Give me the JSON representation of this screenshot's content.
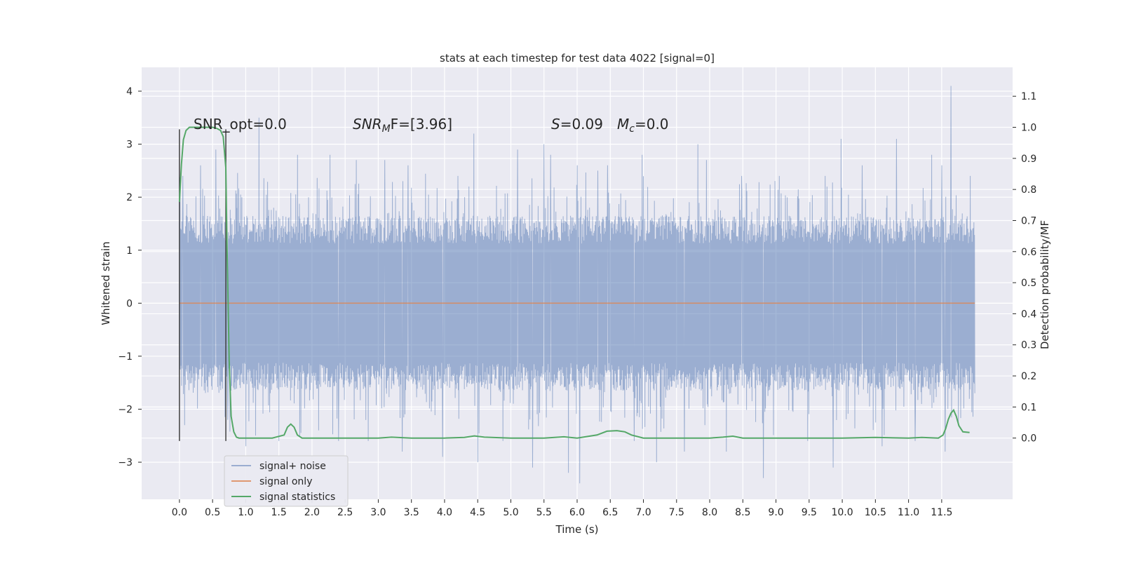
{
  "chart_data": {
    "type": "line",
    "title": "stats at each timestep for test data 4022 [signal=0]",
    "xlabel": "Time (s)",
    "ylabel": "Whitened strain",
    "y2label": "Detection probability/MF",
    "xlim": [
      -0.57,
      12.57
    ],
    "ylim": [
      -3.7,
      4.45
    ],
    "y2lim": [
      -0.197,
      1.193
    ],
    "xticks": [
      0.0,
      0.5,
      1.0,
      1.5,
      2.0,
      2.5,
      3.0,
      3.5,
      4.0,
      4.5,
      5.0,
      5.5,
      6.0,
      6.5,
      7.0,
      7.5,
      8.0,
      8.5,
      9.0,
      9.5,
      10.0,
      10.5,
      11.0,
      11.5
    ],
    "xtick_labels": [
      "0.0",
      "0.5",
      "1.0",
      "1.5",
      "2.0",
      "2.5",
      "3.0",
      "3.5",
      "4.0",
      "4.5",
      "5.0",
      "5.5",
      "6.0",
      "6.5",
      "7.0",
      "7.5",
      "8.0",
      "8.5",
      "9.0",
      "9.5",
      "10.0",
      "10.5",
      "11.0",
      "11.5"
    ],
    "yticks": [
      -3,
      -2,
      -1,
      0,
      1,
      2,
      3,
      4
    ],
    "ytick_labels": [
      "−3",
      "−2",
      "−1",
      "0",
      "1",
      "2",
      "3",
      "4"
    ],
    "y2ticks": [
      0.0,
      0.1,
      0.2,
      0.3,
      0.4,
      0.5,
      0.6,
      0.7,
      0.8,
      0.9,
      1.0,
      1.1
    ],
    "y2tick_labels": [
      "0.0",
      "0.1",
      "0.2",
      "0.3",
      "0.4",
      "0.5",
      "0.6",
      "0.7",
      "0.8",
      "0.9",
      "1.0",
      "1.1"
    ],
    "grid": true,
    "legend_placement": "lower-left",
    "annotations": {
      "snr_opt": "SNR_opt=0.0",
      "snr_mf_main": "SNR",
      "snr_mf_sub": "M",
      "snr_mf_rest": "F=[3.96]",
      "s_main": "S",
      "s_rest": "=0.09",
      "mc_main": "M",
      "mc_sub": "c",
      "mc_rest": "=0.0"
    },
    "series": [
      {
        "name": "signal+ noise",
        "color": "#4c72b0",
        "axis": "left",
        "x_range": [
          0.0,
          12.0
        ],
        "noise_envelope": {
          "core_low": -1.5,
          "core_high": 1.5,
          "peak_max": 4.1,
          "peak_min": -3.4
        },
        "spikes": [
          [
            0.05,
            2.4
          ],
          [
            0.08,
            -2.3
          ],
          [
            0.32,
            2.6
          ],
          [
            0.55,
            2.9
          ],
          [
            0.73,
            -2.2
          ],
          [
            0.94,
            2.0
          ],
          [
            1.0,
            -2.7
          ],
          [
            1.2,
            3.5
          ],
          [
            1.5,
            -2.6
          ],
          [
            1.78,
            2.8
          ],
          [
            2.1,
            -2.4
          ],
          [
            2.27,
            2.8
          ],
          [
            2.4,
            -2.6
          ],
          [
            2.67,
            2.7
          ],
          [
            2.85,
            -2.6
          ],
          [
            3.1,
            2.7
          ],
          [
            3.36,
            -2.8
          ],
          [
            3.45,
            2.6
          ],
          [
            3.97,
            -2.9
          ],
          [
            4.2,
            2.4
          ],
          [
            4.44,
            3.2
          ],
          [
            4.5,
            -3.0
          ],
          [
            4.88,
            -2.6
          ],
          [
            5.1,
            2.9
          ],
          [
            5.33,
            -3.1
          ],
          [
            5.5,
            3.0
          ],
          [
            5.6,
            2.8
          ],
          [
            5.87,
            -3.2
          ],
          [
            6.0,
            2.6
          ],
          [
            6.04,
            -3.4
          ],
          [
            6.31,
            2.5
          ],
          [
            6.46,
            2.6
          ],
          [
            6.86,
            -2.6
          ],
          [
            6.98,
            2.8
          ],
          [
            7.2,
            -3.0
          ],
          [
            7.62,
            -2.8
          ],
          [
            7.82,
            3.0
          ],
          [
            7.95,
            2.7
          ],
          [
            8.25,
            -2.8
          ],
          [
            8.48,
            2.4
          ],
          [
            8.81,
            -3.3
          ],
          [
            9.05,
            2.4
          ],
          [
            9.48,
            -2.6
          ],
          [
            9.74,
            2.4
          ],
          [
            9.86,
            -3.1
          ],
          [
            9.98,
            3.1
          ],
          [
            10.3,
            2.6
          ],
          [
            10.6,
            -2.7
          ],
          [
            10.82,
            3.1
          ],
          [
            11.1,
            -2.6
          ],
          [
            11.35,
            2.8
          ],
          [
            11.5,
            2.6
          ],
          [
            11.55,
            -2.8
          ],
          [
            11.64,
            4.1
          ],
          [
            11.75,
            -2.3
          ],
          [
            11.93,
            2.4
          ]
        ]
      },
      {
        "name": "signal only",
        "color": "#dd8452",
        "axis": "left",
        "x": [
          0.0,
          12.0
        ],
        "y": [
          0.0,
          0.0
        ]
      },
      {
        "name": "signal statistics",
        "color": "#55a868",
        "axis": "right",
        "x": [
          0.0,
          0.03,
          0.06,
          0.1,
          0.15,
          0.22,
          0.3,
          0.4,
          0.5,
          0.56,
          0.62,
          0.66,
          0.7,
          0.72,
          0.75,
          0.78,
          0.82,
          0.86,
          0.9,
          1.0,
          1.2,
          1.4,
          1.58,
          1.63,
          1.68,
          1.73,
          1.78,
          1.85,
          2.0,
          2.5,
          3.0,
          3.2,
          3.5,
          4.0,
          4.3,
          4.45,
          4.6,
          5.0,
          5.5,
          5.8,
          6.0,
          6.3,
          6.45,
          6.6,
          6.72,
          6.82,
          7.0,
          7.5,
          8.0,
          8.2,
          8.35,
          8.5,
          9.0,
          9.5,
          10.0,
          10.5,
          11.0,
          11.2,
          11.45,
          11.52,
          11.56,
          11.6,
          11.64,
          11.68,
          11.72,
          11.76,
          11.82,
          11.92
        ],
        "y": [
          0.76,
          0.88,
          0.96,
          0.99,
          1.0,
          1.0,
          1.0,
          1.0,
          1.0,
          0.997,
          0.99,
          0.97,
          0.87,
          0.6,
          0.25,
          0.07,
          0.02,
          0.003,
          0.0,
          0.0,
          0.0,
          0.0,
          0.01,
          0.035,
          0.045,
          0.035,
          0.01,
          0.0,
          0.0,
          0.0,
          0.0,
          0.003,
          0.0,
          0.0,
          0.002,
          0.007,
          0.003,
          0.0,
          0.0,
          0.004,
          0.0,
          0.01,
          0.022,
          0.024,
          0.02,
          0.01,
          0.0,
          0.0,
          0.0,
          0.003,
          0.006,
          0.0,
          0.0,
          0.0,
          0.0,
          0.002,
          0.0,
          0.002,
          0.0,
          0.01,
          0.03,
          0.06,
          0.08,
          0.09,
          0.07,
          0.04,
          0.02,
          0.018
        ]
      }
    ],
    "vlines": [
      {
        "x": 0.0,
        "ymin": -2.6,
        "ymax": 3.28,
        "color": "#404040"
      },
      {
        "x": 0.7,
        "ymin": -2.6,
        "ymax": 3.28,
        "color": "#404040"
      }
    ]
  }
}
